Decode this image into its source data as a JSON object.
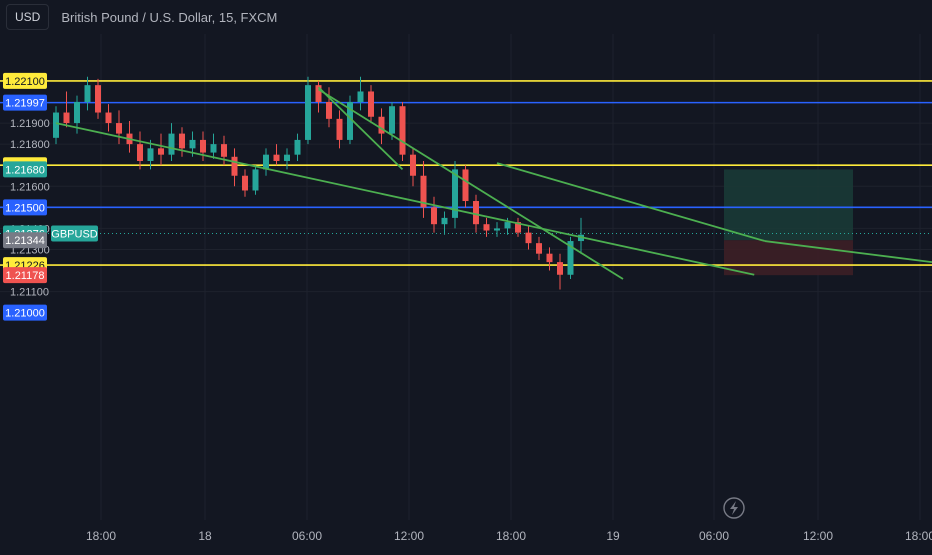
{
  "header": {
    "currency_button": "USD",
    "title": "British Pound / U.S. Dollar, 15, FXCM"
  },
  "colors": {
    "background": "#131722",
    "grid": "#1e222d",
    "up": "#26a69a",
    "down": "#ef5350",
    "yellow_line": "#ffeb3b",
    "blue_line": "#2962ff",
    "trendline": "#4caf50",
    "axis_text": "#b2b5be",
    "profit_zone": "#1a3a36",
    "loss_zone": "#3d1f26"
  },
  "chart_data": {
    "type": "candlestick",
    "symbol_label": "GBPUSD",
    "y_ticks": [
      "1.21100",
      "1.21300",
      "1.21400",
      "1.21600",
      "1.21800",
      "1.21900"
    ],
    "x_ticks": [
      "18:00",
      "18",
      "06:00",
      "12:00",
      "18:00",
      "19",
      "06:00",
      "12:00",
      "18:00"
    ],
    "horizontal_lines": [
      {
        "price": 1.221,
        "label": "1.22100",
        "color": "yellow"
      },
      {
        "price": 1.21997,
        "label": "1.21997",
        "color": "blue"
      },
      {
        "price": 1.217,
        "label": "1.21700",
        "color": "yellow"
      },
      {
        "price": 1.215,
        "label": "1.21500",
        "color": "blue"
      },
      {
        "price": 1.21226,
        "label": "1.21226",
        "color": "yellow"
      },
      {
        "price": 1.21,
        "label": "1.21000",
        "color": "blue"
      }
    ],
    "price_tags": [
      {
        "price": 1.2168,
        "label": "1.21680",
        "kind": "profit"
      },
      {
        "price": 1.21376,
        "label": "1.21376",
        "kind": "current"
      },
      {
        "price": 1.21344,
        "label": "1.21344",
        "kind": "entry"
      },
      {
        "price": 1.21178,
        "label": "1.21178",
        "kind": "stop"
      }
    ],
    "position": {
      "entry": 1.21344,
      "target": 1.2168,
      "stop": 1.21178
    },
    "candles": [
      [
        1.2183,
        1.2198,
        1.218,
        1.2195
      ],
      [
        1.2195,
        1.2205,
        1.2188,
        1.219
      ],
      [
        1.219,
        1.2203,
        1.2185,
        1.22
      ],
      [
        1.22,
        1.2212,
        1.2196,
        1.2208
      ],
      [
        1.2208,
        1.2211,
        1.2192,
        1.2195
      ],
      [
        1.2195,
        1.2199,
        1.2186,
        1.219
      ],
      [
        1.219,
        1.2196,
        1.218,
        1.2185
      ],
      [
        1.2185,
        1.2191,
        1.2176,
        1.218
      ],
      [
        1.218,
        1.2186,
        1.2168,
        1.2172
      ],
      [
        1.2172,
        1.2182,
        1.2168,
        1.2178
      ],
      [
        1.2178,
        1.2185,
        1.217,
        1.2175
      ],
      [
        1.2175,
        1.219,
        1.2172,
        1.2185
      ],
      [
        1.2185,
        1.2188,
        1.2174,
        1.2178
      ],
      [
        1.2178,
        1.2186,
        1.2174,
        1.2182
      ],
      [
        1.2182,
        1.2186,
        1.2172,
        1.2176
      ],
      [
        1.2176,
        1.2185,
        1.2173,
        1.218
      ],
      [
        1.218,
        1.2184,
        1.217,
        1.2174
      ],
      [
        1.2174,
        1.2178,
        1.216,
        1.2165
      ],
      [
        1.2165,
        1.2168,
        1.2155,
        1.2158
      ],
      [
        1.2158,
        1.217,
        1.2156,
        1.2168
      ],
      [
        1.2168,
        1.2178,
        1.2165,
        1.2175
      ],
      [
        1.2175,
        1.218,
        1.217,
        1.2172
      ],
      [
        1.2172,
        1.2178,
        1.2168,
        1.2175
      ],
      [
        1.2175,
        1.2185,
        1.2172,
        1.2182
      ],
      [
        1.2182,
        1.2212,
        1.218,
        1.2208
      ],
      [
        1.2208,
        1.221,
        1.2195,
        1.22
      ],
      [
        1.22,
        1.2207,
        1.2188,
        1.2192
      ],
      [
        1.2192,
        1.2196,
        1.2178,
        1.2182
      ],
      [
        1.2182,
        1.2203,
        1.218,
        1.22
      ],
      [
        1.22,
        1.2212,
        1.2196,
        1.2205
      ],
      [
        1.2205,
        1.2208,
        1.219,
        1.2193
      ],
      [
        1.2193,
        1.2197,
        1.218,
        1.2185
      ],
      [
        1.2185,
        1.22,
        1.2182,
        1.2198
      ],
      [
        1.2198,
        1.22,
        1.2172,
        1.2175
      ],
      [
        1.2175,
        1.2178,
        1.216,
        1.2165
      ],
      [
        1.2165,
        1.2172,
        1.2145,
        1.215
      ],
      [
        1.215,
        1.2155,
        1.2138,
        1.2142
      ],
      [
        1.2142,
        1.2148,
        1.2137,
        1.2145
      ],
      [
        1.2145,
        1.2172,
        1.214,
        1.2168
      ],
      [
        1.2168,
        1.217,
        1.215,
        1.2153
      ],
      [
        1.2153,
        1.2156,
        1.2138,
        1.2142
      ],
      [
        1.2142,
        1.2145,
        1.2136,
        1.2139
      ],
      [
        1.2139,
        1.2143,
        1.2136,
        1.214
      ],
      [
        1.214,
        1.2145,
        1.2137,
        1.2143
      ],
      [
        1.2143,
        1.2145,
        1.2136,
        1.2138
      ],
      [
        1.2138,
        1.2141,
        1.213,
        1.2133
      ],
      [
        1.2133,
        1.2136,
        1.2125,
        1.2128
      ],
      [
        1.2128,
        1.2131,
        1.212,
        1.2124
      ],
      [
        1.2124,
        1.2128,
        1.2111,
        1.2118
      ],
      [
        1.2118,
        1.2136,
        1.2116,
        1.2134
      ],
      [
        1.2134,
        1.2145,
        1.2128,
        1.2137
      ]
    ],
    "trendlines": [
      {
        "from": [
          0,
          1.219
        ],
        "to": [
          66.5,
          1.2118
        ]
      },
      {
        "from": [
          25,
          1.2206
        ],
        "to": [
          54,
          1.2116
        ]
      },
      {
        "from": [
          25,
          1.2207
        ],
        "to": [
          33,
          1.2168
        ]
      },
      {
        "from": [
          42,
          1.2171
        ],
        "to": [
          67.5,
          1.2134
        ]
      }
    ]
  }
}
